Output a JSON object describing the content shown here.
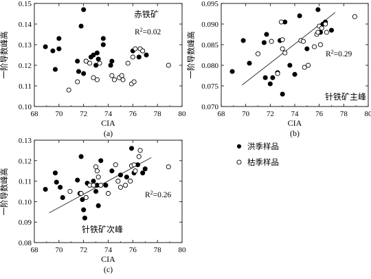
{
  "legend": {
    "items": [
      {
        "label": "洪季样品",
        "marker": "filled"
      },
      {
        "label": "枯季样品",
        "marker": "open"
      }
    ]
  },
  "chart_data": [
    {
      "type": "scatter",
      "panel_label": "(a)",
      "xlabel": "CIA",
      "ylabel": "一阶导数峰高",
      "xlim": [
        68,
        80
      ],
      "ylim": [
        0.1,
        0.15
      ],
      "xticks": [
        "68",
        "70",
        "72",
        "74",
        "76",
        "78",
        "80"
      ],
      "yticks": [
        "0.10",
        "0.11",
        "0.12",
        "0.13",
        "0.14",
        "0.15"
      ],
      "annotations": {
        "title": "赤铁矿",
        "r2": "R²=0.02"
      },
      "trendline": null,
      "series": [
        {
          "name": "洪季样品",
          "marker": "filled",
          "points": [
            [
              68.9,
              0.129
            ],
            [
              69.5,
              0.127
            ],
            [
              69.7,
              0.118
            ],
            [
              70.0,
              0.133
            ],
            [
              70.0,
              0.128
            ],
            [
              71.5,
              0.122
            ],
            [
              71.6,
              0.117
            ],
            [
              71.8,
              0.139
            ],
            [
              72.0,
              0.147
            ],
            [
              72.0,
              0.116
            ],
            [
              72.2,
              0.122
            ],
            [
              72.6,
              0.124
            ],
            [
              72.8,
              0.125
            ],
            [
              73.0,
              0.12
            ],
            [
              73.1,
              0.126
            ],
            [
              73.2,
              0.123
            ],
            [
              73.6,
              0.13
            ],
            [
              73.6,
              0.133
            ],
            [
              74.2,
              0.12
            ],
            [
              74.3,
              0.122
            ],
            [
              76.0,
              0.127
            ],
            [
              76.5,
              0.124
            ],
            [
              76.8,
              0.127
            ],
            [
              77.1,
              0.125
            ]
          ]
        },
        {
          "name": "枯季样品",
          "marker": "open",
          "points": [
            [
              70.8,
              0.108
            ],
            [
              71.5,
              0.112
            ],
            [
              72.2,
              0.122
            ],
            [
              72.5,
              0.121
            ],
            [
              72.8,
              0.114
            ],
            [
              73.1,
              0.113
            ],
            [
              73.3,
              0.121
            ],
            [
              74.3,
              0.115
            ],
            [
              74.5,
              0.113
            ],
            [
              74.9,
              0.114
            ],
            [
              75.1,
              0.115
            ],
            [
              75.2,
              0.113
            ],
            [
              75.6,
              0.121
            ],
            [
              75.9,
              0.111
            ],
            [
              76.1,
              0.112
            ],
            [
              76.0,
              0.124
            ],
            [
              76.2,
              0.128
            ],
            [
              76.6,
              0.128
            ],
            [
              76.8,
              0.127
            ],
            [
              78.9,
              0.12
            ]
          ]
        }
      ]
    },
    {
      "type": "scatter",
      "panel_label": "(b)",
      "xlabel": "CIA",
      "ylabel": "一阶导数峰高",
      "xlim": [
        68,
        80
      ],
      "ylim": [
        0.07,
        0.095
      ],
      "xticks": [
        "68",
        "70",
        "72",
        "74",
        "76",
        "78",
        "80"
      ],
      "yticks": [
        "0.070",
        "0.075",
        "0.080",
        "0.085",
        "0.090",
        "0.095"
      ],
      "annotations": {
        "title": "针铁矿主峰",
        "r2": "R²=0.29"
      },
      "trendline": {
        "x": [
          69.7,
          77.3
        ],
        "y": [
          0.0752,
          0.0928
        ]
      },
      "series": [
        {
          "name": "洪季样品",
          "marker": "filled",
          "points": [
            [
              68.9,
              0.0785
            ],
            [
              69.8,
              0.086
            ],
            [
              70.3,
              0.0805
            ],
            [
              71.5,
              0.0855
            ],
            [
              71.6,
              0.077
            ],
            [
              71.7,
              0.0875
            ],
            [
              72.0,
              0.0755
            ],
            [
              72.2,
              0.077
            ],
            [
              72.6,
              0.0782
            ],
            [
              72.8,
              0.086
            ],
            [
              73.0,
              0.073
            ],
            [
              73.2,
              0.0905
            ],
            [
              73.6,
              0.08
            ],
            [
              74.0,
              0.0778
            ],
            [
              74.4,
              0.092
            ],
            [
              75.0,
              0.084
            ],
            [
              75.9,
              0.0935
            ],
            [
              76.1,
              0.088
            ],
            [
              76.3,
              0.09
            ],
            [
              76.5,
              0.0905
            ],
            [
              77.0,
              0.0885
            ]
          ]
        },
        {
          "name": "枯季样品",
          "marker": "open",
          "points": [
            [
              71.0,
              0.0828
            ],
            [
              72.1,
              0.0858
            ],
            [
              72.6,
              0.078
            ],
            [
              72.9,
              0.0905
            ],
            [
              73.0,
              0.0862
            ],
            [
              73.0,
              0.084
            ],
            [
              73.2,
              0.083
            ],
            [
              74.5,
              0.086
            ],
            [
              74.7,
              0.0858
            ],
            [
              74.8,
              0.0795
            ],
            [
              75.1,
              0.08
            ],
            [
              75.6,
              0.0845
            ],
            [
              75.8,
              0.0875
            ],
            [
              75.9,
              0.088
            ],
            [
              76.0,
              0.0895
            ],
            [
              76.1,
              0.085
            ],
            [
              76.2,
              0.089
            ],
            [
              76.5,
              0.09
            ],
            [
              76.6,
              0.088
            ],
            [
              78.9,
              0.0918
            ]
          ]
        }
      ]
    },
    {
      "type": "scatter",
      "panel_label": "(c)",
      "xlabel": "CIA",
      "ylabel": "一阶导数峰高",
      "xlim": [
        68,
        80
      ],
      "ylim": [
        0.08,
        0.13
      ],
      "xticks": [
        "68",
        "70",
        "72",
        "74",
        "76",
        "78",
        "80"
      ],
      "yticks": [
        "0.08",
        "0.09",
        "0.10",
        "0.11",
        "0.12",
        "0.13"
      ],
      "annotations": {
        "title": "针铁矿次峰",
        "r2": "R²=0.26"
      },
      "trendline": {
        "x": [
          69.2,
          77.5
        ],
        "y": [
          0.0945,
          0.1215
        ]
      },
      "series": [
        {
          "name": "洪季样品",
          "marker": "filled",
          "points": [
            [
              68.9,
              0.106
            ],
            [
              69.7,
              0.114
            ],
            [
              69.8,
              0.1095
            ],
            [
              70.1,
              0.107
            ],
            [
              70.3,
              0.102
            ],
            [
              71.5,
              0.1105
            ],
            [
              71.7,
              0.104
            ],
            [
              71.8,
              0.122
            ],
            [
              71.9,
              0.101
            ],
            [
              72.0,
              0.096
            ],
            [
              72.1,
              0.092
            ],
            [
              72.3,
              0.109
            ],
            [
              72.8,
              0.11
            ],
            [
              73.0,
              0.105
            ],
            [
              73.1,
              0.108
            ],
            [
              73.2,
              0.098
            ],
            [
              73.4,
              0.12
            ],
            [
              73.8,
              0.108
            ],
            [
              74.3,
              0.115
            ],
            [
              75.0,
              0.113
            ],
            [
              75.5,
              0.112
            ],
            [
              75.9,
              0.126
            ],
            [
              76.1,
              0.114
            ],
            [
              76.4,
              0.118
            ],
            [
              76.8,
              0.114
            ],
            [
              77.0,
              0.116
            ]
          ]
        },
        {
          "name": "枯季样品",
          "marker": "open",
          "points": [
            [
              70.9,
              0.105
            ],
            [
              71.8,
              0.104
            ],
            [
              72.2,
              0.102
            ],
            [
              72.5,
              0.108
            ],
            [
              72.8,
              0.108
            ],
            [
              73.0,
              0.117
            ],
            [
              73.1,
              0.115
            ],
            [
              73.2,
              0.112
            ],
            [
              73.4,
              0.108
            ],
            [
              74.0,
              0.104
            ],
            [
              74.6,
              0.118
            ],
            [
              74.8,
              0.11
            ],
            [
              75.0,
              0.107
            ],
            [
              75.4,
              0.108
            ],
            [
              75.8,
              0.11
            ],
            [
              75.9,
              0.1175
            ],
            [
              76.1,
              0.118
            ],
            [
              76.2,
              0.115
            ],
            [
              76.5,
              0.122
            ],
            [
              76.6,
              0.125
            ],
            [
              78.9,
              0.117
            ]
          ]
        }
      ]
    }
  ]
}
